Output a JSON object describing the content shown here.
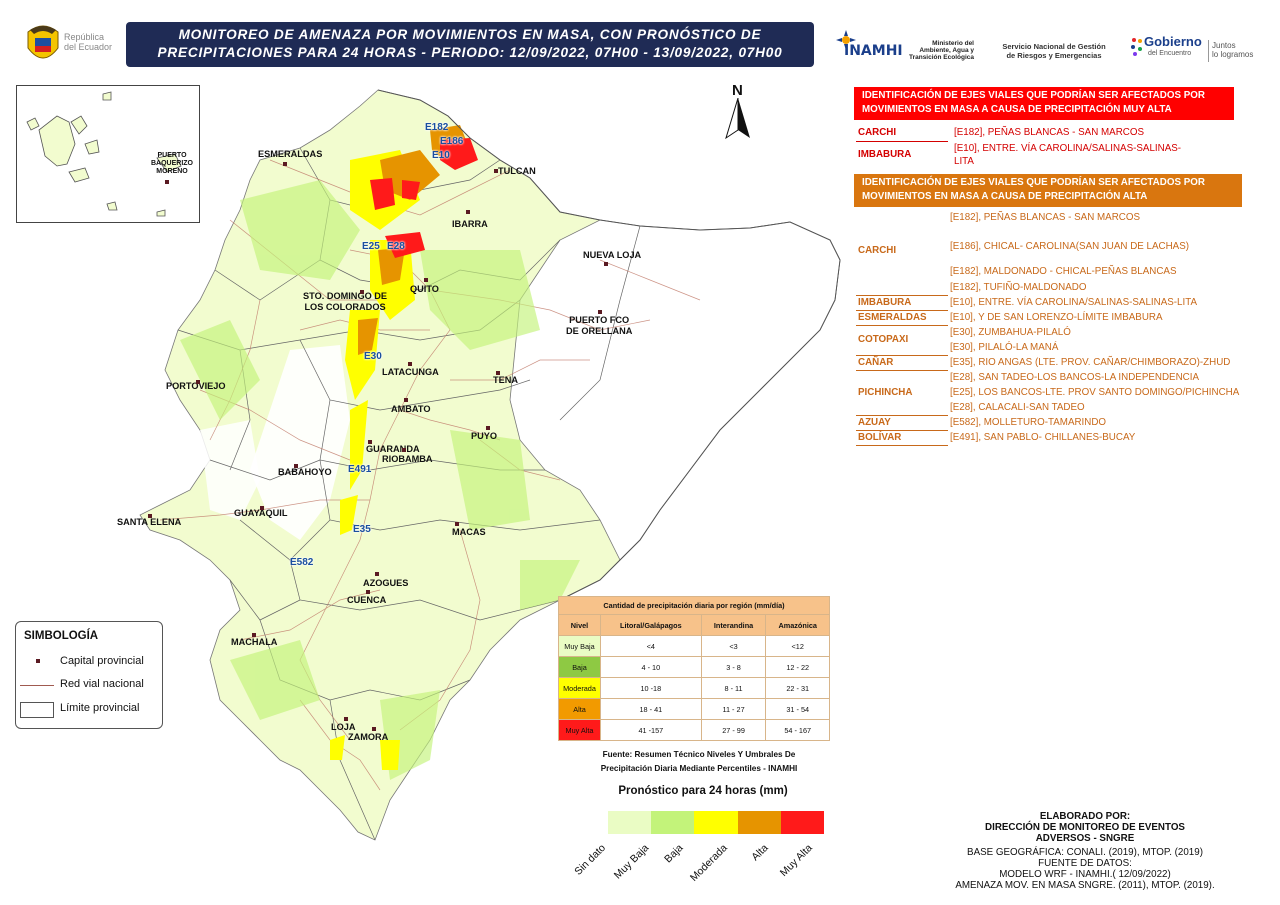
{
  "header": {
    "logo_text": [
      "República",
      "del Ecuador"
    ],
    "title_line1": "MONITOREO DE AMENAZA POR MOVIMIENTOS EN MASA, CON PRONÓSTICO DE",
    "title_line2": "PRECIPITACIONES PARA 24 HORAS - PERIODO: 12/09/2022, 07H00 - 13/09/2022, 07H00",
    "inamhi": "INAMHI",
    "ministerio": [
      "Ministerio del",
      "Ambiente, Agua y",
      "Transición Ecológica"
    ],
    "sngre": [
      "Servicio Nacional de Gestión",
      "de Riesgos y Emergencias"
    ],
    "gobierno": "Gobierno",
    "gobierno_sub": "del Encuentro",
    "juntos": [
      "Juntos",
      "lo logramos"
    ]
  },
  "map": {
    "north": "N",
    "inset_label": [
      "PUERTO",
      "BAQUERIZO",
      "MORENO"
    ],
    "cities": [
      {
        "label": "ESMERALDAS"
      },
      {
        "label": "TULCAN"
      },
      {
        "label": "IBARRA"
      },
      {
        "label": "NUEVA LOJA"
      },
      {
        "label": "QUITO"
      },
      {
        "label": "STO. DOMINGO DE"
      },
      {
        "label": "LOS COLORADOS"
      },
      {
        "label": "PUERTO FCO"
      },
      {
        "label": "DE ORELLANA"
      },
      {
        "label": "LATACUNGA"
      },
      {
        "label": "TENA"
      },
      {
        "label": "PORTOVIEJO"
      },
      {
        "label": "AMBATO"
      },
      {
        "label": "GUARANDA"
      },
      {
        "label": "RIOBAMBA"
      },
      {
        "label": "PUYO"
      },
      {
        "label": "BABAHOYO"
      },
      {
        "label": "GUAYAQUIL"
      },
      {
        "label": "SANTA ELENA"
      },
      {
        "label": "MACAS"
      },
      {
        "label": "AZOGUES"
      },
      {
        "label": "CUENCA"
      },
      {
        "label": "MACHALA"
      },
      {
        "label": "LOJA"
      },
      {
        "label": "ZAMORA"
      }
    ],
    "roads": [
      "E182",
      "E186",
      "E10",
      "E25",
      "E28",
      "E30",
      "E491",
      "E35",
      "E582"
    ]
  },
  "simbologia": {
    "title": "SIMBOLOGÍA",
    "items": [
      "Capital provincial",
      "Red vial nacional",
      "Límite provincial"
    ]
  },
  "precip_table": {
    "caption": "Cantidad de precipitación diaria por región (mm/día)",
    "headers": [
      "Nivel",
      "Litoral/Galápagos",
      "Interandina",
      "Amazónica"
    ],
    "rows": [
      {
        "nivel": "Muy Baja",
        "litoral": "<4",
        "interandina": "<3",
        "amazonica": "<12",
        "color": "#eafcc4"
      },
      {
        "nivel": "Baja",
        "litoral": "4 - 10",
        "interandina": "3 - 8",
        "amazonica": "12 - 22",
        "color": "#8ec943"
      },
      {
        "nivel": "Moderada",
        "litoral": "10 -18",
        "interandina": "8 - 11",
        "amazonica": "22 - 31",
        "color": "#ffff00"
      },
      {
        "nivel": "Alta",
        "litoral": "18 - 41",
        "interandina": "11 - 27",
        "amazonica": "31 - 54",
        "color": "#f29a00"
      },
      {
        "nivel": "Muy Alta",
        "litoral": "41 -157",
        "interandina": "27 - 99",
        "amazonica": "54 - 167",
        "color": "#ff1a1a"
      }
    ],
    "fuente": [
      "Fuente: Resumen Técnico Niveles Y Umbrales De",
      "Precipitación Diaria Mediante Percentiles - INAMHI"
    ]
  },
  "pronostico": {
    "title": "Pronóstico para 24 horas (mm)",
    "classes": [
      {
        "label": "Sin dato",
        "color": "#f2fccf"
      },
      {
        "label": "Muy Baja",
        "color": "#eafcc4"
      },
      {
        "label": "Baja",
        "color": "#c3f37a"
      },
      {
        "label": "Moderada",
        "color": "#ffff00"
      },
      {
        "label": "Alta",
        "color": "#e69400"
      },
      {
        "label": "Muy Alta",
        "color": "#ff1a1a"
      }
    ]
  },
  "panel": {
    "muy_alta_title": [
      "IDENTIFICACIÓN DE EJES VIALES QUE PODRÍAN SER AFECTADOS POR",
      "MOVIMIENTOS EN MASA A CAUSA DE  PRECIPITACIÓN MUY ALTA"
    ],
    "muy_alta": [
      {
        "prov": "CARCHI",
        "roads": [
          "[E182], PEÑAS BLANCAS - SAN MARCOS"
        ]
      },
      {
        "prov": "IMBABURA",
        "roads": [
          "[E10], ENTRE. VÍA CAROLINA/SALINAS-SALINAS-",
          "LITA"
        ]
      }
    ],
    "alta_title": [
      "IDENTIFICACIÓN DE EJES VIALES QUE PODRÍAN SER AFECTADOS POR",
      "MOVIMIENTOS EN MASA A CAUSA DE  PRECIPITACIÓN ALTA"
    ],
    "alta": [
      {
        "prov": "CARCHI",
        "roads": [
          "[E182], PEÑAS BLANCAS - SAN MARCOS",
          "[E186], CHICAL- CAROLINA(SAN JUAN DE LACHAS)",
          "[E182], MALDONADO - CHICAL-PEÑAS BLANCAS",
          "[E182], TUFIÑO-MALDONADO"
        ]
      },
      {
        "prov": "IMBABURA",
        "roads": [
          "[E10], ENTRE. VÍA CAROLINA/SALINAS-SALINAS-LITA"
        ]
      },
      {
        "prov": "ESMERALDAS",
        "roads": [
          "[E10], Y DE SAN LORENZO-LÍMITE IMBABURA"
        ]
      },
      {
        "prov": "COTOPAXI",
        "roads": [
          "[E30], ZUMBAHUA-PILALÓ",
          "[E30], PILALÓ-LA MANÁ"
        ]
      },
      {
        "prov": "CAÑAR",
        "roads": [
          "[E35], RIO ANGAS (LTE. PROV. CAÑAR/CHIMBORAZO)-ZHUD"
        ]
      },
      {
        "prov": "PICHINCHA",
        "roads": [
          "[E28], SAN TADEO-LOS BANCOS-LA INDEPENDENCIA",
          "[E25], LOS BANCOS-LTE. PROV SANTO DOMINGO/PICHINCHA",
          "[E28], CALACALI-SAN TADEO"
        ]
      },
      {
        "prov": "AZUAY",
        "roads": [
          "[E582], MOLLETURO-TAMARINDO"
        ]
      },
      {
        "prov": "BOLÍVAR",
        "roads": [
          "[E491], SAN PABLO- CHILLANES-BUCAY"
        ]
      }
    ],
    "colors": {
      "muy_alta": "#ff0000",
      "alta": "#d9760f",
      "muy_alta_text": "#d40000",
      "alta_text": "#c8691a"
    }
  },
  "credits": {
    "elaborado": [
      "ELABORADO POR:",
      "DIRECCIÓN DE MONITOREO DE EVENTOS",
      "ADVERSOS - SNGRE"
    ],
    "base": [
      "BASE GEOGRÁFICA: CONALI. (2019), MTOP. (2019)",
      "FUENTE DE DATOS:",
      "MODELO WRF - INAMHI.( 12/09/2022)",
      "AMENAZA MOV. EN MASA SNGRE. (2011), MTOP. (2019)."
    ]
  }
}
